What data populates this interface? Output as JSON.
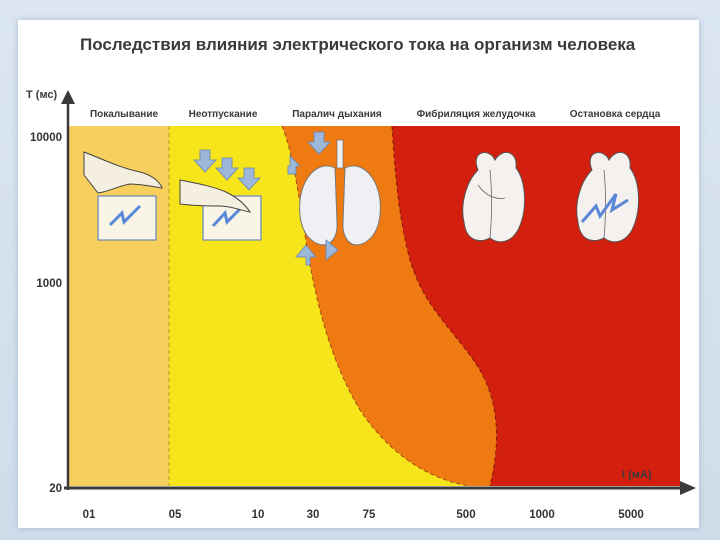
{
  "chart_data": {
    "type": "area",
    "title": "Последствия влияния электрического тока на организм человека",
    "xlabel": "I (мА)",
    "ylabel": "T (мс)",
    "x_ticks": [
      "01",
      "05",
      "10",
      "30",
      "75",
      "500",
      "1000",
      "5000"
    ],
    "y_ticks": [
      "10000",
      "1000",
      "20"
    ],
    "y_scale": "log",
    "zones": [
      {
        "label": "Покалывание",
        "color": "#f6cf5c",
        "icon": "hand-icon"
      },
      {
        "label": "Неотпускание",
        "color": "#f7e51b",
        "icon": "hand-arrows-icon"
      },
      {
        "label": "Паралич дыхания",
        "color": "#f07a12",
        "icon": "lungs-icon"
      },
      {
        "label": "Фибриляция желудочка",
        "color": "#d3200e",
        "icon": "heart-icon"
      },
      {
        "label": "Остановка сердца",
        "color": "#d3200e",
        "icon": "heart-zap-icon"
      }
    ]
  }
}
